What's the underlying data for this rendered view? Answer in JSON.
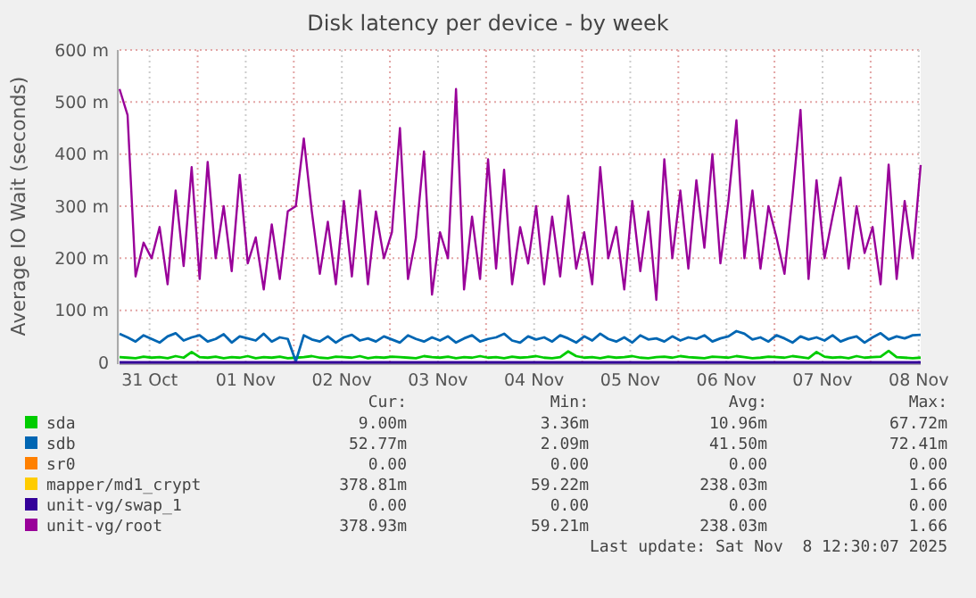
{
  "chart_data": {
    "type": "line",
    "title": "Disk latency per device - by week",
    "ylabel": "Average IO Wait (seconds)",
    "xlim": [
      "2025-10-31T04:30",
      "2025-11-08T12:30"
    ],
    "xticks": [
      {
        "value": "2025-10-31T12:00",
        "label": "31 Oct"
      },
      {
        "value": "2025-11-01T00:00",
        "label": null
      },
      {
        "value": "2025-11-01T12:00",
        "label": "01 Nov"
      },
      {
        "value": "2025-11-02T00:00",
        "label": null
      },
      {
        "value": "2025-11-02T12:00",
        "label": "02 Nov"
      },
      {
        "value": "2025-11-03T00:00",
        "label": null
      },
      {
        "value": "2025-11-03T12:00",
        "label": "03 Nov"
      },
      {
        "value": "2025-11-04T00:00",
        "label": null
      },
      {
        "value": "2025-11-04T12:00",
        "label": "04 Nov"
      },
      {
        "value": "2025-11-05T00:00",
        "label": null
      },
      {
        "value": "2025-11-05T12:00",
        "label": "05 Nov"
      },
      {
        "value": "2025-11-06T00:00",
        "label": null
      },
      {
        "value": "2025-11-06T12:00",
        "label": "06 Nov"
      },
      {
        "value": "2025-11-07T00:00",
        "label": null
      },
      {
        "value": "2025-11-07T12:00",
        "label": "07 Nov"
      },
      {
        "value": "2025-11-08T00:00",
        "label": null
      },
      {
        "value": "2025-11-08T12:00",
        "label": "08 Nov"
      }
    ],
    "ylim": [
      0,
      600
    ],
    "yticks": [
      0,
      {
        "value": 100,
        "label": "100 m"
      },
      {
        "value": 200,
        "label": "200 m"
      },
      {
        "value": 300,
        "label": "300 m"
      },
      {
        "value": 400,
        "label": "400 m"
      },
      {
        "value": 500,
        "label": "500 m"
      },
      {
        "value": 600,
        "label": "600 m"
      }
    ],
    "grid": true,
    "legend": "bottom",
    "marker": "none",
    "line_style": "solid",
    "x": [
      "2025-10-31T04:30",
      "2025-10-31T06:30",
      "2025-10-31T08:30",
      "2025-10-31T10:30",
      "2025-10-31T12:30",
      "2025-10-31T14:30",
      "2025-10-31T16:30",
      "2025-10-31T18:30",
      "2025-10-31T20:30",
      "2025-10-31T22:30",
      "2025-11-01T00:30",
      "2025-11-01T02:30",
      "2025-11-01T04:30",
      "2025-11-01T06:30",
      "2025-11-01T08:30",
      "2025-11-01T10:30",
      "2025-11-01T12:30",
      "2025-11-01T14:30",
      "2025-11-01T16:30",
      "2025-11-01T18:30",
      "2025-11-01T20:30",
      "2025-11-01T22:30",
      "2025-11-02T00:30",
      "2025-11-02T02:30",
      "2025-11-02T04:30",
      "2025-11-02T06:30",
      "2025-11-02T08:30",
      "2025-11-02T10:30",
      "2025-11-02T12:30",
      "2025-11-02T14:30",
      "2025-11-02T16:30",
      "2025-11-02T18:30",
      "2025-11-02T20:30",
      "2025-11-02T22:30",
      "2025-11-03T00:30",
      "2025-11-03T02:30",
      "2025-11-03T04:30",
      "2025-11-03T06:30",
      "2025-11-03T08:30",
      "2025-11-03T10:30",
      "2025-11-03T12:30",
      "2025-11-03T14:30",
      "2025-11-03T16:30",
      "2025-11-03T18:30",
      "2025-11-03T20:30",
      "2025-11-03T22:30",
      "2025-11-04T00:30",
      "2025-11-04T02:30",
      "2025-11-04T04:30",
      "2025-11-04T06:30",
      "2025-11-04T08:30",
      "2025-11-04T10:30",
      "2025-11-04T12:30",
      "2025-11-04T14:30",
      "2025-11-04T16:30",
      "2025-11-04T18:30",
      "2025-11-04T20:30",
      "2025-11-04T22:30",
      "2025-11-05T00:30",
      "2025-11-05T02:30",
      "2025-11-05T04:30",
      "2025-11-05T06:30",
      "2025-11-05T08:30",
      "2025-11-05T10:30",
      "2025-11-05T12:30",
      "2025-11-05T14:30",
      "2025-11-05T16:30",
      "2025-11-05T18:30",
      "2025-11-05T20:30",
      "2025-11-05T22:30",
      "2025-11-06T00:30",
      "2025-11-06T02:30",
      "2025-11-06T04:30",
      "2025-11-06T06:30",
      "2025-11-06T08:30",
      "2025-11-06T10:30",
      "2025-11-06T12:30",
      "2025-11-06T14:30",
      "2025-11-06T16:30",
      "2025-11-06T18:30",
      "2025-11-06T20:30",
      "2025-11-06T22:30",
      "2025-11-07T00:30",
      "2025-11-07T02:30",
      "2025-11-07T04:30",
      "2025-11-07T06:30",
      "2025-11-07T08:30",
      "2025-11-07T10:30",
      "2025-11-07T12:30",
      "2025-11-07T14:30",
      "2025-11-07T16:30",
      "2025-11-07T18:30",
      "2025-11-07T20:30",
      "2025-11-07T22:30",
      "2025-11-08T00:30",
      "2025-11-08T02:30",
      "2025-11-08T04:30",
      "2025-11-08T06:30",
      "2025-11-08T08:30",
      "2025-11-08T10:30",
      "2025-11-08T12:30"
    ],
    "series": [
      {
        "name": "sda",
        "color": "#00cc00",
        "values": [
          10,
          9,
          8,
          11,
          9,
          10,
          8,
          12,
          9,
          20,
          10,
          9,
          11,
          8,
          10,
          9,
          12,
          8,
          10,
          9,
          11,
          8,
          9,
          10,
          12,
          9,
          8,
          11,
          10,
          9,
          12,
          8,
          10,
          9,
          11,
          10,
          9,
          8,
          12,
          10,
          9,
          11,
          8,
          10,
          9,
          12,
          9,
          10,
          8,
          11,
          9,
          10,
          12,
          9,
          8,
          10,
          21,
          12,
          9,
          10,
          8,
          11,
          9,
          10,
          12,
          9,
          8,
          10,
          11,
          9,
          12,
          10,
          9,
          8,
          11,
          10,
          9,
          12,
          10,
          8,
          9,
          11,
          10,
          9,
          12,
          10,
          8,
          20,
          11,
          9,
          10,
          8,
          12,
          9,
          10,
          11,
          22,
          10,
          9,
          8,
          9
        ]
      },
      {
        "name": "sdb",
        "color": "#0066b3",
        "values": [
          55,
          48,
          40,
          52,
          45,
          38,
          50,
          56,
          42,
          48,
          52,
          40,
          45,
          54,
          38,
          50,
          46,
          42,
          55,
          40,
          48,
          45,
          2,
          52,
          44,
          40,
          50,
          38,
          48,
          53,
          42,
          46,
          40,
          50,
          44,
          38,
          52,
          45,
          40,
          48,
          42,
          50,
          38,
          46,
          52,
          40,
          45,
          48,
          55,
          42,
          38,
          50,
          44,
          48,
          40,
          52,
          46,
          38,
          50,
          42,
          55,
          45,
          40,
          48,
          38,
          52,
          44,
          46,
          40,
          50,
          42,
          48,
          45,
          52,
          40,
          46,
          50,
          60,
          55,
          44,
          48,
          40,
          52,
          46,
          38,
          50,
          44,
          48,
          42,
          52,
          40,
          46,
          50,
          38,
          48,
          56,
          44,
          50,
          46,
          52,
          53
        ]
      },
      {
        "name": "sr0",
        "color": "#ff8000",
        "values": [
          null,
          null,
          null,
          null,
          null,
          null,
          null,
          null,
          null,
          null,
          null,
          null,
          null,
          null,
          null,
          null,
          null,
          null,
          null,
          null,
          null,
          null,
          null,
          null,
          null,
          null,
          null,
          null,
          null,
          null,
          null,
          null,
          null,
          null,
          null,
          null,
          null,
          null,
          null,
          null,
          null,
          null,
          null,
          null,
          null,
          null,
          null,
          null,
          null,
          null,
          null,
          null,
          null,
          null,
          null,
          null,
          null,
          null,
          null,
          null,
          null,
          null,
          null,
          null,
          null,
          null,
          null,
          null,
          null,
          null,
          null,
          null,
          null,
          null,
          null,
          null,
          null,
          null,
          null,
          null,
          null,
          null,
          null,
          null,
          null,
          null,
          null,
          null,
          null,
          null,
          null,
          null,
          null,
          null,
          null,
          null,
          null,
          null,
          null,
          null,
          null
        ]
      },
      {
        "name": "mapper/md1_crypt",
        "color": "#ffcc00",
        "values": [
          null,
          null,
          null,
          null,
          null,
          null,
          null,
          null,
          null,
          null,
          null,
          null,
          null,
          null,
          null,
          null,
          null,
          null,
          null,
          null,
          null,
          null,
          null,
          null,
          null,
          null,
          null,
          null,
          null,
          null,
          null,
          null,
          null,
          null,
          null,
          null,
          null,
          null,
          null,
          null,
          null,
          null,
          null,
          null,
          null,
          null,
          null,
          null,
          null,
          null,
          null,
          null,
          null,
          null,
          null,
          null,
          null,
          null,
          null,
          null,
          null,
          null,
          null,
          null,
          null,
          null,
          null,
          null,
          null,
          null,
          null,
          null,
          null,
          null,
          null,
          null,
          null,
          null,
          null,
          null,
          null,
          null,
          null,
          null,
          null,
          null,
          null,
          null,
          null,
          null,
          null,
          null,
          null,
          null,
          null,
          null,
          null,
          null,
          null,
          null,
          null
        ]
      },
      {
        "name": "unit-vg/swap_1",
        "color": "#330099",
        "x": [
          "2025-10-31T04:30",
          "2025-11-08T12:30"
        ],
        "values": [
          0,
          0
        ]
      },
      {
        "name": "unit-vg/root",
        "color": "#990099",
        "values": [
          525,
          475,
          165,
          230,
          200,
          260,
          150,
          330,
          185,
          375,
          160,
          385,
          200,
          300,
          175,
          360,
          190,
          240,
          140,
          265,
          160,
          290,
          300,
          430,
          290,
          170,
          270,
          150,
          310,
          165,
          330,
          150,
          290,
          200,
          250,
          450,
          160,
          240,
          405,
          130,
          250,
          200,
          525,
          140,
          280,
          160,
          390,
          180,
          370,
          150,
          260,
          190,
          300,
          150,
          280,
          165,
          320,
          180,
          250,
          150,
          375,
          200,
          260,
          140,
          310,
          175,
          290,
          120,
          390,
          200,
          330,
          180,
          350,
          220,
          400,
          190,
          310,
          465,
          200,
          330,
          180,
          300,
          240,
          170,
          320,
          485,
          160,
          350,
          200,
          280,
          355,
          180,
          300,
          210,
          260,
          150,
          380,
          160,
          310,
          200,
          379
        ]
      }
    ],
    "annotations": [
      "Cur:",
      "Min:",
      "Avg:",
      "Max:",
      "9.00m",
      "3.36m",
      "10.96m",
      "67.72m",
      "52.77m",
      "2.09m",
      "41.50m",
      "72.41m",
      "0.00",
      "0.00",
      "0.00",
      "0.00",
      "378.81m",
      "59.22m",
      "238.03m",
      "1.66",
      "0.00",
      "0.00",
      "0.00",
      "0.00",
      "378.93m",
      "59.21m",
      "238.03m",
      "1.66",
      "Last update: Sat Nov  8 12:30:07 2025"
    ]
  }
}
